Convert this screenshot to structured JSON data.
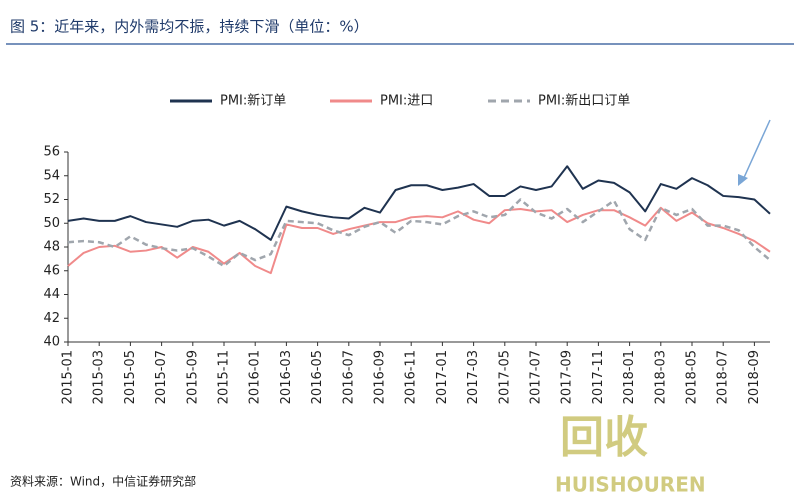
{
  "chart_data": {
    "type": "line",
    "title": "图 5：近年来，内外需均不振，持续下滑（单位：%）",
    "source": "资料来源：Wind，中信证券研究部",
    "categories": [
      "2015-01",
      null,
      "2015-03",
      null,
      "2015-05",
      null,
      "2015-07",
      null,
      "2015-09",
      null,
      "2015-11",
      null,
      "2016-01",
      null,
      "2016-03",
      null,
      "2016-05",
      null,
      "2016-07",
      null,
      "2016-09",
      null,
      "2016-11",
      null,
      "2017-01",
      null,
      "2017-03",
      null,
      "2017-05",
      null,
      "2017-07",
      null,
      "2017-09",
      null,
      "2017-11",
      null,
      "2018-01",
      null,
      "2018-03",
      null,
      "2018-05",
      null,
      "2018-07",
      null,
      "2018-09",
      null
    ],
    "series": [
      {
        "name": "PMI:新订单",
        "color": "#1f3350",
        "dashed": false,
        "values": [
          50.2,
          50.4,
          50.2,
          50.2,
          50.6,
          50.1,
          49.9,
          49.7,
          50.2,
          50.3,
          49.8,
          50.2,
          49.5,
          48.6,
          51.4,
          51.0,
          50.7,
          50.5,
          50.4,
          51.3,
          50.9,
          52.8,
          53.2,
          53.2,
          52.8,
          53.0,
          53.3,
          52.3,
          52.3,
          53.1,
          52.8,
          53.1,
          54.8,
          52.9,
          53.6,
          53.4,
          52.6,
          51.0,
          53.3,
          52.9,
          53.8,
          53.2,
          52.3,
          52.2,
          52.0,
          50.8
        ]
      },
      {
        "name": "PMI:进口",
        "color": "#f08a8a",
        "dashed": false,
        "values": [
          46.4,
          47.5,
          48.0,
          48.1,
          47.6,
          47.7,
          48.0,
          47.1,
          48.0,
          47.6,
          46.6,
          47.5,
          46.4,
          45.8,
          49.9,
          49.6,
          49.6,
          49.1,
          49.5,
          49.8,
          50.1,
          50.1,
          50.5,
          50.6,
          50.5,
          51.0,
          50.3,
          50.0,
          51.1,
          51.2,
          51.0,
          51.1,
          50.1,
          50.7,
          51.1,
          51.1,
          50.5,
          49.8,
          51.3,
          50.2,
          50.9,
          50.0,
          49.6,
          49.1,
          48.5,
          47.6
        ]
      },
      {
        "name": "PMI:新出口订单",
        "color": "#a0a6ad",
        "dashed": true,
        "values": [
          48.4,
          48.5,
          48.4,
          48.0,
          48.9,
          48.2,
          47.9,
          47.7,
          47.9,
          47.2,
          46.4,
          47.5,
          46.9,
          47.4,
          50.2,
          50.1,
          50.0,
          49.4,
          49.0,
          49.7,
          50.1,
          49.2,
          50.2,
          50.1,
          49.9,
          50.6,
          51.0,
          50.5,
          50.7,
          52.0,
          50.9,
          50.4,
          51.2,
          50.1,
          51.0,
          51.9,
          49.5,
          48.6,
          51.3,
          50.7,
          51.2,
          49.8,
          49.8,
          49.4,
          48.0,
          46.9
        ]
      }
    ],
    "ylim": [
      40,
      56
    ],
    "yticks": [
      40,
      42,
      44,
      46,
      48,
      50,
      52,
      54,
      56
    ]
  },
  "watermark": {
    "logo": "回收",
    "brand": "HUISHOUREN"
  }
}
